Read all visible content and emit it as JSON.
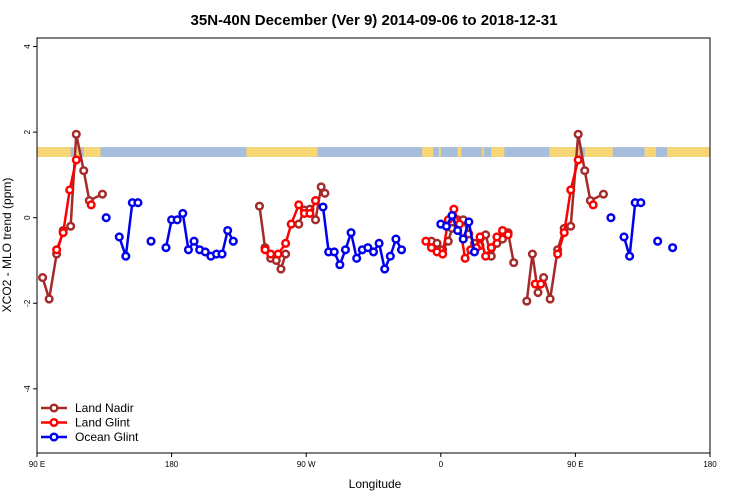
{
  "chart_data": {
    "type": "line",
    "title": "35N-40N December (Ver 9)   2014-09-06 to 2018-12-31",
    "xlabel": "Longitude",
    "ylabel": "XCO2 - MLO trend (ppm)",
    "xlim": [
      90,
      450
    ],
    "ylim": [
      -5.5,
      4.2
    ],
    "xticks": [
      90,
      162,
      234,
      306,
      378,
      450
    ],
    "xtick_labels": [
      "90 E",
      "180",
      "90 W",
      "0",
      "90 E",
      "180"
    ],
    "yticks": [
      -4,
      -2,
      0,
      2,
      4
    ],
    "ytick_labels": [
      "-4",
      "-2",
      "0",
      "2",
      "4"
    ],
    "legend_position": "bottom-left",
    "colors": {
      "land_nadir": "#a52a2a",
      "land_glint": "#ff0000",
      "ocean_glint": "#0000ee",
      "band_land": "#f7d775",
      "band_ocean": "#a6bedc"
    },
    "surface_band": {
      "y_range": [
        1.42,
        1.65
      ],
      "land_x_ranges": [
        [
          90,
          108
        ],
        [
          109.5,
          113.5
        ],
        [
          115,
          124
        ],
        [
          202,
          240
        ],
        [
          296,
          302
        ],
        [
          305,
          306
        ],
        [
          315,
          317
        ],
        [
          328,
          329
        ],
        [
          333,
          340
        ],
        [
          364,
          380
        ],
        [
          383,
          398
        ],
        [
          415,
          421
        ],
        [
          427,
          450
        ]
      ]
    },
    "series": [
      {
        "name": "Land Nadir",
        "color_key": "land_nadir",
        "points": [
          [
            93,
            -1.4
          ],
          [
            96.5,
            -1.9
          ],
          [
            100.5,
            -0.85
          ],
          [
            104,
            -0.3
          ],
          [
            108,
            -0.2
          ],
          [
            111,
            1.95
          ],
          [
            115,
            1.1
          ],
          [
            118,
            0.4
          ],
          [
            125,
            0.55
          ],
          [
            null,
            null
          ],
          [
            209,
            0.27
          ],
          [
            212,
            -0.7
          ],
          [
            215,
            -0.95
          ],
          [
            218,
            -1.0
          ],
          [
            220.5,
            -1.2
          ],
          [
            223,
            -0.85
          ],
          [
            null,
            null
          ],
          [
            230,
            -0.15
          ],
          [
            233,
            0.18
          ],
          [
            236,
            0.2
          ],
          [
            239,
            -0.05
          ],
          [
            242,
            0.72
          ],
          [
            244,
            0.57
          ],
          [
            null,
            null
          ],
          [
            301,
            -0.55
          ],
          [
            304,
            -0.6
          ],
          [
            307,
            -0.75
          ],
          [
            310,
            -0.55
          ],
          [
            312,
            -0.25
          ],
          [
            315,
            -0.05
          ],
          [
            318,
            -0.05
          ],
          [
            321,
            -0.38
          ],
          [
            324,
            -0.6
          ],
          [
            327,
            -0.65
          ],
          [
            330,
            -0.4
          ],
          [
            333,
            -0.9
          ],
          [
            336,
            -0.6
          ],
          [
            339,
            -0.5
          ],
          [
            342,
            -0.35
          ],
          [
            345,
            -1.05
          ],
          [
            null,
            null
          ],
          [
            352,
            -1.95
          ],
          [
            355,
            -0.85
          ],
          [
            358,
            -1.75
          ],
          [
            361,
            -1.4
          ],
          [
            364.5,
            -1.9
          ],
          [
            368.5,
            -0.75
          ],
          [
            372,
            -0.25
          ],
          [
            375.5,
            -0.2
          ],
          [
            379.5,
            1.95
          ],
          [
            383,
            1.1
          ],
          [
            386,
            0.4
          ],
          [
            393,
            0.55
          ]
        ]
      },
      {
        "name": "Land Glint",
        "color_key": "land_glint",
        "points": [
          [
            100.5,
            -0.75
          ],
          [
            104,
            -0.35
          ],
          [
            107.5,
            0.65
          ],
          [
            111,
            1.35
          ],
          [
            null,
            null
          ],
          [
            119,
            0.3
          ],
          [
            null,
            null
          ],
          [
            212,
            -0.75
          ],
          [
            215,
            -0.85
          ],
          [
            219,
            -0.85
          ],
          [
            223,
            -0.6
          ],
          [
            226,
            -0.15
          ],
          [
            230,
            0.3
          ],
          [
            233,
            0.1
          ],
          [
            236,
            0.1
          ],
          [
            239,
            0.4
          ],
          [
            null,
            null
          ],
          [
            298,
            -0.55
          ],
          [
            301,
            -0.7
          ],
          [
            304,
            -0.8
          ],
          [
            307,
            -0.85
          ],
          [
            310,
            -0.05
          ],
          [
            313,
            0.2
          ],
          [
            316,
            -0.15
          ],
          [
            319,
            -0.95
          ],
          [
            322,
            -0.75
          ],
          [
            325,
            -0.7
          ],
          [
            327,
            -0.45
          ],
          [
            330,
            -0.9
          ],
          [
            333,
            -0.7
          ],
          [
            336,
            -0.45
          ],
          [
            339,
            -0.3
          ],
          [
            342,
            -0.4
          ],
          [
            null,
            null
          ],
          [
            356.5,
            -1.55
          ],
          [
            359.5,
            -1.55
          ],
          [
            null,
            null
          ],
          [
            368.5,
            -0.85
          ],
          [
            372,
            -0.35
          ],
          [
            375.5,
            0.65
          ],
          [
            379.5,
            1.35
          ],
          [
            null,
            null
          ],
          [
            387.5,
            0.3
          ]
        ]
      },
      {
        "name": "Ocean Glint",
        "color_key": "ocean_glint",
        "points": [
          [
            127,
            0.0
          ],
          [
            null,
            null
          ],
          [
            134,
            -0.45
          ],
          [
            137.5,
            -0.9
          ],
          [
            141,
            0.35
          ],
          [
            144,
            0.35
          ],
          [
            null,
            null
          ],
          [
            151,
            -0.55
          ],
          [
            null,
            null
          ],
          [
            159,
            -0.7
          ],
          [
            162,
            -0.05
          ],
          [
            165,
            -0.05
          ],
          [
            168,
            0.1
          ],
          [
            171,
            -0.75
          ],
          [
            174,
            -0.55
          ],
          [
            177,
            -0.75
          ],
          [
            180,
            -0.8
          ],
          [
            183,
            -0.9
          ],
          [
            186,
            -0.85
          ],
          [
            189,
            -0.85
          ],
          [
            192,
            -0.3
          ],
          [
            195,
            -0.55
          ],
          [
            null,
            null
          ],
          [
            243,
            0.25
          ],
          [
            246,
            -0.8
          ],
          [
            249,
            -0.8
          ],
          [
            252,
            -1.1
          ],
          [
            255,
            -0.75
          ],
          [
            258,
            -0.35
          ],
          [
            261,
            -0.95
          ],
          [
            264,
            -0.75
          ],
          [
            267,
            -0.7
          ],
          [
            270,
            -0.8
          ],
          [
            273,
            -0.6
          ],
          [
            276,
            -1.2
          ],
          [
            279,
            -0.9
          ],
          [
            282,
            -0.5
          ],
          [
            285,
            -0.75
          ],
          [
            null,
            null
          ],
          [
            306,
            -0.15
          ],
          [
            309,
            -0.2
          ],
          [
            312,
            0.05
          ],
          [
            315,
            -0.3
          ],
          [
            318,
            -0.5
          ],
          [
            321,
            -0.1
          ],
          [
            324,
            -0.8
          ],
          [
            null,
            null
          ],
          [
            397,
            0.0
          ],
          [
            null,
            null
          ],
          [
            404,
            -0.45
          ],
          [
            407,
            -0.9
          ],
          [
            410,
            0.35
          ],
          [
            413,
            0.35
          ],
          [
            null,
            null
          ],
          [
            422,
            -0.55
          ],
          [
            null,
            null
          ],
          [
            430,
            -0.7
          ]
        ]
      }
    ]
  }
}
